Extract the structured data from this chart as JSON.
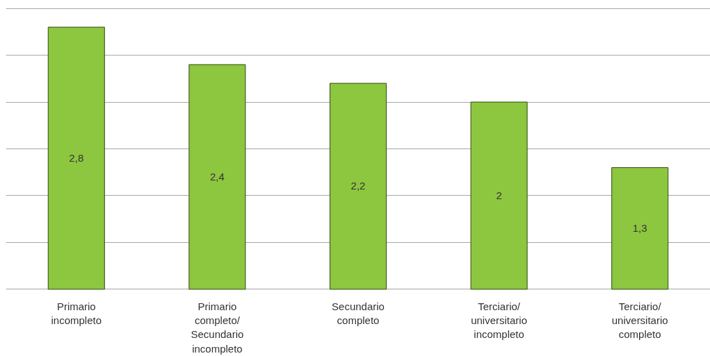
{
  "chart_data": {
    "type": "bar",
    "categories": [
      "Primario incompleto",
      "Primario completo/ Secundario incompleto",
      "Secundario completo",
      "Terciario/ universitario incompleto",
      "Terciario/ universitario completo"
    ],
    "values": [
      2.8,
      2.4,
      2.2,
      2,
      1.3
    ],
    "color": "#8dc63f",
    "value_labels": [
      "2,8",
      "2,4",
      "2,2",
      "2",
      "1,3"
    ],
    "yticks": [
      {
        "value": 0,
        "label": null
      },
      {
        "value": 0.5,
        "label": null
      },
      {
        "value": 1,
        "label": null
      },
      {
        "value": 1.5,
        "label": null
      },
      {
        "value": 2,
        "label": null
      },
      {
        "value": 2.5,
        "label": null
      },
      {
        "value": 3,
        "label": null
      }
    ],
    "grid": "y",
    "tick_labels": "x"
  }
}
